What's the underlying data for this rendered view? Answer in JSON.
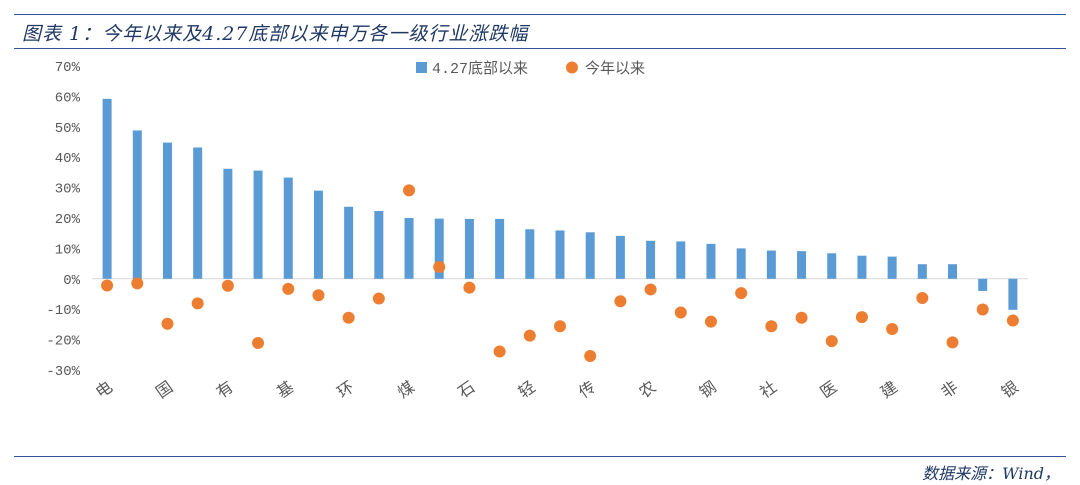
{
  "header": {
    "title": "图表 1：今年以来及4.27底部以来申万各一级行业涨跌幅"
  },
  "footer": {
    "source": "数据来源：Wind，"
  },
  "colors": {
    "bar": "#5b9bd5",
    "dot": "#ed7d31",
    "axis": "#d9d9d9",
    "text": "#595959"
  },
  "chart_data": {
    "type": "bar",
    "legend": {
      "position": "top-center",
      "entries": [
        "4.27底部以来",
        "今年以来"
      ]
    },
    "yaxis": {
      "min": -30,
      "max": 70,
      "step": 10,
      "suffix": "%",
      "ticks": [
        "70%",
        "60%",
        "50%",
        "40%",
        "30%",
        "20%",
        "10%",
        "0%",
        "-10%",
        "-20%",
        "-30%"
      ]
    },
    "grid": false,
    "categories": [
      "电",
      "",
      "国",
      "",
      "有",
      "",
      "基",
      "",
      "环",
      "",
      "煤",
      "",
      "石",
      "",
      "轻",
      "",
      "传",
      "",
      "农",
      "",
      "钢",
      "",
      "社",
      "",
      "医",
      "",
      "建",
      "",
      "非",
      "",
      "银"
    ],
    "series": [
      {
        "name": "4.27底部以来",
        "type": "bar",
        "values": [
          59.2,
          48.8,
          44.8,
          43.2,
          36.2,
          35.6,
          33.3,
          29.0,
          23.7,
          22.3,
          20.0,
          19.8,
          19.7,
          19.7,
          16.3,
          15.9,
          15.3,
          14.1,
          12.5,
          12.3,
          11.5,
          10.0,
          9.3,
          9.1,
          8.4,
          7.6,
          7.3,
          4.8,
          4.8,
          -4.0,
          -10.2
        ]
      },
      {
        "name": "今年以来",
        "type": "scatter",
        "values": [
          -2.2,
          -1.5,
          -14.8,
          -8.1,
          -2.3,
          -21.1,
          -3.3,
          -5.4,
          -12.8,
          -6.5,
          29.1,
          3.9,
          -2.9,
          -23.9,
          -18.7,
          -15.6,
          -25.4,
          -7.4,
          -3.5,
          -11.1,
          -14.1,
          -4.7,
          -15.6,
          -12.8,
          -20.5,
          -12.6,
          -16.5,
          -6.3,
          -20.9,
          -10.1,
          -13.7
        ]
      }
    ]
  }
}
